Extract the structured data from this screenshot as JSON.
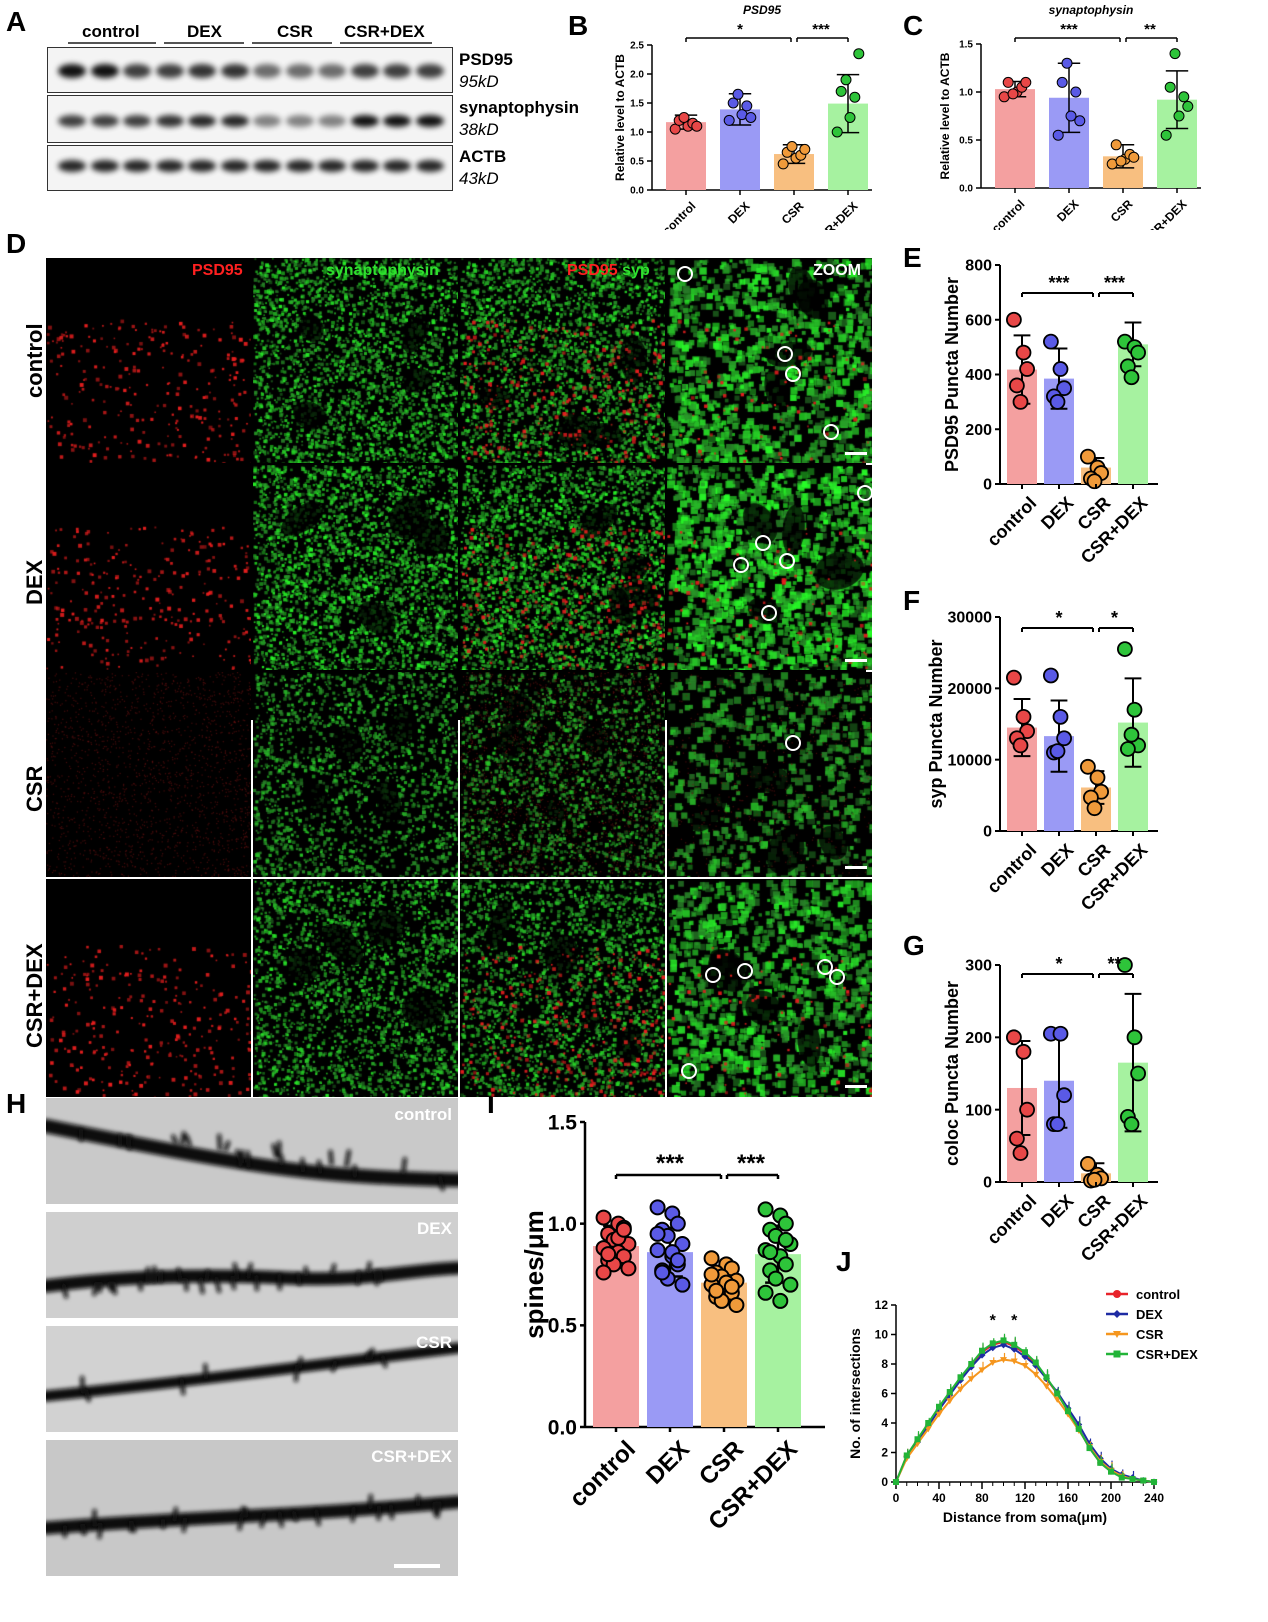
{
  "panels": {
    "A": "A",
    "B": "B",
    "C": "C",
    "D": "D",
    "E": "E",
    "F": "F",
    "G": "G",
    "H": "H",
    "I": "I",
    "J": "J"
  },
  "groups": [
    "control",
    "DEX",
    "CSR",
    "CSR+DEX"
  ],
  "colors": {
    "control": "#f4a0a0",
    "DEX": "#9a9af5",
    "CSR": "#f8bf80",
    "CSR+DEX": "#a6f2a0",
    "control_dot": "#e84747",
    "DEX_dot": "#5a5ae6",
    "CSR_dot": "#f09a3a",
    "CSRDEX_dot": "#2ec43a"
  },
  "blot": {
    "group_labels": [
      "control",
      "DEX",
      "CSR",
      "CSR+DEX"
    ],
    "proteins": [
      {
        "name": "PSD95",
        "size": "95kD"
      },
      {
        "name": "synaptophysin",
        "size": "38kD"
      },
      {
        "name": "ACTB",
        "size": "43kD"
      }
    ]
  },
  "micro": {
    "channel_labels": {
      "psd": "PSD95",
      "syn": "synaptophysin",
      "merge_psd": "PSD95",
      "merge_syp": "syp",
      "zoom": "ZOOM"
    },
    "row_labels": [
      "control",
      "DEX",
      "CSR",
      "CSR+DEX"
    ]
  },
  "dendrite": {
    "labels": [
      "control",
      "DEX",
      "CSR",
      "CSR+DEX"
    ]
  },
  "chart_data": [
    {
      "id": "B",
      "type": "bar",
      "title": "PSD95",
      "ylabel": "Relative level to ACTB",
      "categories": [
        "control",
        "DEX",
        "CSR",
        "CSR+DEX"
      ],
      "values": [
        1.17,
        1.39,
        0.62,
        1.49
      ],
      "errors": [
        0.12,
        0.27,
        0.16,
        0.5
      ],
      "points": [
        [
          1.05,
          1.1,
          1.15,
          1.2,
          1.25,
          1.1
        ],
        [
          1.2,
          1.3,
          1.45,
          1.5,
          1.65,
          1.25
        ],
        [
          0.45,
          0.55,
          0.6,
          0.65,
          0.75,
          0.7
        ],
        [
          1.0,
          1.25,
          1.6,
          1.7,
          1.9,
          2.35
        ]
      ],
      "ylim": [
        0,
        2.5
      ],
      "yticks": [
        "0.0",
        "0.5",
        "1.0",
        "1.5",
        "2.0",
        "2.5"
      ],
      "sig": [
        {
          "from": 0,
          "to": 2,
          "label": "*"
        },
        {
          "from": 2,
          "to": 3,
          "label": "***"
        }
      ]
    },
    {
      "id": "C",
      "type": "bar",
      "title": "synaptophysin",
      "ylabel": "Relative level to ACTB",
      "categories": [
        "control",
        "DEX",
        "CSR",
        "CSR+DEX"
      ],
      "values": [
        1.03,
        0.94,
        0.33,
        0.92
      ],
      "errors": [
        0.08,
        0.36,
        0.12,
        0.3
      ],
      "points": [
        [
          0.95,
          1.0,
          1.05,
          1.1,
          0.98,
          1.1
        ],
        [
          0.55,
          0.75,
          1.0,
          1.1,
          1.3,
          0.7
        ],
        [
          0.25,
          0.3,
          0.35,
          0.45,
          0.28,
          0.32
        ],
        [
          0.55,
          0.75,
          0.95,
          1.05,
          1.4,
          0.85
        ]
      ],
      "ylim": [
        0,
        1.5
      ],
      "yticks": [
        "0.0",
        "0.5",
        "1.0",
        "1.5"
      ],
      "sig": [
        {
          "from": 0,
          "to": 2,
          "label": "***"
        },
        {
          "from": 2,
          "to": 3,
          "label": "**"
        }
      ]
    },
    {
      "id": "E",
      "type": "bar",
      "ylabel": "PSD95 Puncta Number",
      "categories": [
        "control",
        "DEX",
        "CSR",
        "CSR+DEX"
      ],
      "values": [
        418,
        385,
        60,
        510
      ],
      "errors": [
        125,
        110,
        35,
        80
      ],
      "points": [
        [
          600,
          480,
          420,
          360,
          300
        ],
        [
          520,
          420,
          350,
          320,
          300
        ],
        [
          100,
          60,
          40,
          20,
          10
        ],
        [
          520,
          500,
          480,
          430,
          390
        ]
      ],
      "ylim": [
        0,
        800
      ],
      "yticks": [
        "0",
        "200",
        "400",
        "600",
        "800"
      ],
      "sig": [
        {
          "from": 0,
          "to": 2,
          "label": "***"
        },
        {
          "from": 2,
          "to": 3,
          "label": "***"
        }
      ]
    },
    {
      "id": "F",
      "type": "bar",
      "ylabel": "syp Puncta Number",
      "categories": [
        "control",
        "DEX",
        "CSR",
        "CSR+DEX"
      ],
      "values": [
        14500,
        13300,
        6100,
        15200
      ],
      "errors": [
        4000,
        5000,
        2300,
        6200
      ],
      "points": [
        [
          21500,
          16000,
          14000,
          13000,
          12000
        ],
        [
          21800,
          16000,
          13000,
          11000,
          11200
        ],
        [
          9000,
          7500,
          5500,
          4700,
          3200
        ],
        [
          25500,
          17000,
          12000,
          11500,
          13500
        ]
      ],
      "ylim": [
        0,
        30000
      ],
      "yticks": [
        "0",
        "10000",
        "20000",
        "30000"
      ],
      "sig": [
        {
          "from": 0,
          "to": 2,
          "label": "*"
        },
        {
          "from": 2,
          "to": 3,
          "label": "*"
        }
      ]
    },
    {
      "id": "G",
      "type": "bar",
      "ylabel": "coloc Puncta Number",
      "categories": [
        "control",
        "DEX",
        "CSR",
        "CSR+DEX"
      ],
      "values": [
        130,
        140,
        12,
        165
      ],
      "errors": [
        65,
        65,
        14,
        95
      ],
      "points": [
        [
          200,
          180,
          100,
          60,
          40
        ],
        [
          205,
          205,
          120,
          80,
          80
        ],
        [
          25,
          10,
          5,
          2,
          3
        ],
        [
          300,
          200,
          150,
          90,
          80
        ]
      ],
      "ylim": [
        0,
        300
      ],
      "yticks": [
        "0",
        "100",
        "200",
        "300"
      ],
      "sig": [
        {
          "from": 0,
          "to": 2,
          "label": "*"
        },
        {
          "from": 2,
          "to": 3,
          "label": "**"
        }
      ]
    },
    {
      "id": "I",
      "type": "bar",
      "ylabel": "spines/μm",
      "categories": [
        "control",
        "DEX",
        "CSR",
        "CSR+DEX"
      ],
      "values": [
        0.89,
        0.86,
        0.71,
        0.85
      ],
      "errors": [
        0.1,
        0.12,
        0.07,
        0.14
      ],
      "points": [
        [
          1.03,
          1.0,
          0.98,
          0.95,
          0.92,
          0.9,
          0.88,
          0.86,
          0.84,
          0.82,
          0.8,
          0.78,
          0.76,
          0.93,
          0.97,
          0.85
        ],
        [
          1.08,
          1.05,
          1.0,
          0.97,
          0.94,
          0.9,
          0.87,
          0.84,
          0.8,
          0.77,
          0.73,
          0.7,
          0.95,
          0.86,
          0.82,
          0.76
        ],
        [
          0.83,
          0.8,
          0.78,
          0.76,
          0.74,
          0.72,
          0.7,
          0.68,
          0.66,
          0.64,
          0.62,
          0.6,
          0.75,
          0.71,
          0.69,
          0.67
        ],
        [
          1.07,
          1.04,
          1.0,
          0.97,
          0.94,
          0.9,
          0.87,
          0.84,
          0.8,
          0.77,
          0.73,
          0.7,
          0.66,
          0.62,
          0.92,
          0.86
        ]
      ],
      "ylim": [
        0,
        1.5
      ],
      "yticks": [
        "0.0",
        "0.5",
        "1.0",
        "1.5"
      ],
      "sig": [
        {
          "from": 0,
          "to": 2,
          "label": "***"
        },
        {
          "from": 2,
          "to": 3,
          "label": "***"
        }
      ]
    },
    {
      "id": "J",
      "type": "line",
      "xlabel": "Distance from soma(μm)",
      "ylabel": "No. of intersections",
      "x": [
        0,
        10,
        20,
        30,
        40,
        50,
        60,
        70,
        80,
        90,
        100,
        110,
        120,
        130,
        140,
        150,
        160,
        170,
        180,
        190,
        200,
        210,
        220,
        230,
        240
      ],
      "xticks": [
        "0",
        "40",
        "80",
        "120",
        "160",
        "200",
        "240"
      ],
      "yticks": [
        "0",
        "2",
        "4",
        "6",
        "8",
        "10",
        "12"
      ],
      "ylim": [
        0,
        12
      ],
      "xlim": [
        0,
        240
      ],
      "series": [
        {
          "name": "control",
          "color": "#e8232a",
          "marker": "circle",
          "values": [
            0,
            1.8,
            2.8,
            3.9,
            5.0,
            6.0,
            7.0,
            7.9,
            8.8,
            9.3,
            9.5,
            9.2,
            8.7,
            8.0,
            7.0,
            6.0,
            4.8,
            3.6,
            2.3,
            1.3,
            0.7,
            0.4,
            0.2,
            0.1,
            0
          ]
        },
        {
          "name": "DEX",
          "color": "#1e2ba3",
          "marker": "diamond",
          "values": [
            0,
            1.7,
            2.7,
            3.8,
            4.9,
            5.9,
            6.9,
            7.8,
            8.6,
            9.1,
            9.3,
            9.0,
            8.5,
            7.9,
            7.0,
            6.1,
            5.0,
            3.9,
            2.6,
            1.6,
            0.9,
            0.5,
            0.3,
            0.1,
            0
          ]
        },
        {
          "name": "CSR",
          "color": "#f5961e",
          "marker": "triangle",
          "values": [
            0,
            1.6,
            2.6,
            3.6,
            4.6,
            5.5,
            6.3,
            7.0,
            7.6,
            8.1,
            8.3,
            8.2,
            7.9,
            7.3,
            6.5,
            5.6,
            4.6,
            3.5,
            2.4,
            1.4,
            0.8,
            0.4,
            0.2,
            0.1,
            0
          ]
        },
        {
          "name": "CSR+DEX",
          "color": "#22b438",
          "marker": "square",
          "values": [
            0,
            1.8,
            2.9,
            4.0,
            5.1,
            6.1,
            7.1,
            8.0,
            8.9,
            9.4,
            9.6,
            9.3,
            8.8,
            8.1,
            7.1,
            6.0,
            4.8,
            3.6,
            2.3,
            1.3,
            0.7,
            0.3,
            0.2,
            0.1,
            0
          ]
        }
      ],
      "star_labels": [
        "*",
        "*"
      ]
    }
  ]
}
